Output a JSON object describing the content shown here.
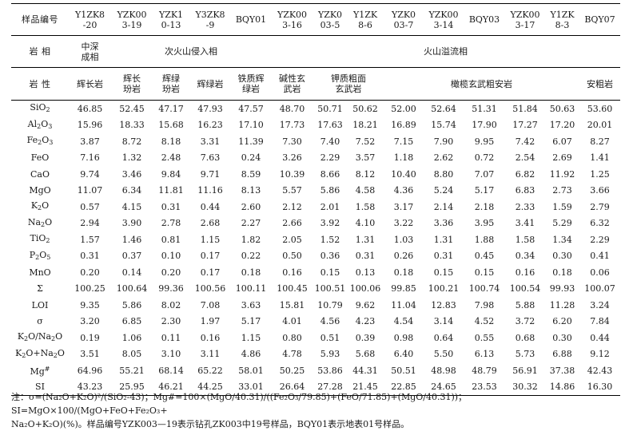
{
  "table": {
    "corner_label": "样品编号",
    "sample_ids": [
      [
        "Y1ZK8",
        "-20"
      ],
      [
        "YZK00",
        "3-19"
      ],
      [
        "YZK1",
        "0-13"
      ],
      [
        "Y3ZK8",
        "-9"
      ],
      [
        "BQY01",
        ""
      ],
      [
        "YZK00",
        "3-16"
      ],
      [
        "YZK0",
        "03-5"
      ],
      [
        "Y1ZK",
        "8-6"
      ],
      [
        "YZK0",
        "03-7"
      ],
      [
        "YZK00",
        "3-14"
      ],
      [
        "BQY03",
        ""
      ],
      [
        "YZK00",
        "3-17"
      ],
      [
        "Y1ZK",
        "8-3"
      ],
      [
        "BQY07",
        ""
      ]
    ],
    "facies_label": "岩 相",
    "facies_1": [
      "中深",
      "成相"
    ],
    "facies_2": "次火山侵入相",
    "facies_3": "火山溢流相",
    "rock_label": "岩 性",
    "rocks": {
      "r1": "辉长岩",
      "r2": [
        "辉长",
        "玢岩"
      ],
      "r3": [
        "辉绿",
        "玢岩"
      ],
      "r4": "辉绿岩",
      "r5": [
        "铁质辉",
        "绿岩"
      ],
      "r6": [
        "碱性玄",
        "武岩"
      ],
      "r7": [
        "钾质粗面",
        "玄武岩"
      ],
      "r8": "橄榄玄武粗安岩",
      "r9": "安粗岩"
    },
    "rows": [
      {
        "label": "SiO2",
        "values": [
          "46.85",
          "52.45",
          "47.17",
          "47.93",
          "47.57",
          "48.70",
          "50.71",
          "50.62",
          "52.00",
          "52.64",
          "51.31",
          "51.84",
          "50.63",
          "53.60"
        ]
      },
      {
        "label": "Al2O3",
        "values": [
          "15.96",
          "18.33",
          "15.68",
          "16.23",
          "17.10",
          "17.73",
          "17.63",
          "18.21",
          "16.89",
          "15.74",
          "17.90",
          "17.27",
          "17.20",
          "20.01"
        ]
      },
      {
        "label": "Fe2O3",
        "values": [
          "3.87",
          "8.72",
          "8.18",
          "3.31",
          "11.39",
          "7.30",
          "7.40",
          "7.52",
          "7.15",
          "7.90",
          "9.95",
          "7.42",
          "6.07",
          "8.27"
        ]
      },
      {
        "label": "FeO",
        "values": [
          "7.16",
          "1.32",
          "2.48",
          "7.63",
          "0.24",
          "3.26",
          "2.29",
          "3.57",
          "1.18",
          "2.62",
          "0.72",
          "2.54",
          "2.69",
          "1.41"
        ]
      },
      {
        "label": "CaO",
        "values": [
          "9.74",
          "3.46",
          "9.84",
          "9.71",
          "8.59",
          "10.39",
          "8.66",
          "8.12",
          "10.40",
          "8.80",
          "7.07",
          "6.82",
          "11.92",
          "1.25"
        ]
      },
      {
        "label": "MgO",
        "values": [
          "11.07",
          "6.34",
          "11.81",
          "11.16",
          "8.13",
          "5.57",
          "5.86",
          "4.58",
          "4.36",
          "5.24",
          "5.17",
          "6.83",
          "2.73",
          "3.66"
        ]
      },
      {
        "label": "K2O",
        "values": [
          "0.57",
          "4.15",
          "0.31",
          "0.44",
          "2.60",
          "2.12",
          "2.01",
          "1.58",
          "3.17",
          "2.14",
          "2.18",
          "2.33",
          "1.59",
          "2.79"
        ]
      },
      {
        "label": "Na2O",
        "values": [
          "2.94",
          "3.90",
          "2.78",
          "2.68",
          "2.27",
          "2.66",
          "3.92",
          "4.10",
          "3.22",
          "3.36",
          "3.95",
          "3.41",
          "5.29",
          "6.32"
        ]
      },
      {
        "label": "TiO2",
        "values": [
          "1.57",
          "1.46",
          "0.81",
          "1.15",
          "1.82",
          "2.05",
          "1.52",
          "1.31",
          "1.03",
          "1.31",
          "1.88",
          "1.58",
          "1.34",
          "2.29"
        ]
      },
      {
        "label": "P2O5",
        "values": [
          "0.31",
          "0.37",
          "0.10",
          "0.17",
          "0.22",
          "0.50",
          "0.36",
          "0.31",
          "0.26",
          "0.31",
          "0.45",
          "0.34",
          "0.30",
          "0.41"
        ]
      },
      {
        "label": "MnO",
        "values": [
          "0.20",
          "0.14",
          "0.20",
          "0.17",
          "0.18",
          "0.16",
          "0.15",
          "0.13",
          "0.18",
          "0.15",
          "0.15",
          "0.16",
          "0.18",
          "0.06"
        ]
      },
      {
        "label": "Σ",
        "values": [
          "100.25",
          "100.64",
          "99.36",
          "100.56",
          "100.11",
          "100.45",
          "100.51",
          "100.06",
          "99.85",
          "100.21",
          "100.74",
          "100.54",
          "99.93",
          "100.07"
        ]
      },
      {
        "label": "LOI",
        "values": [
          "9.35",
          "5.86",
          "8.02",
          "7.08",
          "3.63",
          "15.81",
          "10.79",
          "9.62",
          "11.04",
          "12.83",
          "7.98",
          "5.88",
          "11.28",
          "3.24"
        ]
      },
      {
        "label": "σ",
        "values": [
          "3.20",
          "6.85",
          "2.30",
          "1.97",
          "5.17",
          "4.01",
          "4.56",
          "4.23",
          "4.54",
          "3.14",
          "4.52",
          "3.72",
          "6.20",
          "7.84"
        ]
      },
      {
        "label": "K2O/Na2O",
        "values": [
          "0.19",
          "1.06",
          "0.11",
          "0.16",
          "1.15",
          "0.80",
          "0.51",
          "0.39",
          "0.98",
          "0.64",
          "0.55",
          "0.68",
          "0.30",
          "0.44"
        ]
      },
      {
        "label": "K2O+Na2O",
        "values": [
          "3.51",
          "8.05",
          "3.10",
          "3.11",
          "4.86",
          "4.78",
          "5.93",
          "5.68",
          "6.40",
          "5.50",
          "6.13",
          "5.73",
          "6.88",
          "9.12"
        ]
      },
      {
        "label": "Mg#",
        "values": [
          "64.96",
          "55.21",
          "68.14",
          "65.22",
          "58.01",
          "50.25",
          "53.86",
          "44.31",
          "50.51",
          "48.98",
          "48.79",
          "56.91",
          "37.38",
          "42.43"
        ]
      },
      {
        "label": "SI",
        "values": [
          "43.23",
          "25.95",
          "46.21",
          "44.25",
          "33.01",
          "26.64",
          "27.28",
          "21.45",
          "22.85",
          "24.65",
          "23.53",
          "30.32",
          "14.86",
          "16.30"
        ]
      }
    ]
  },
  "note": {
    "line1": "注：σ=(Na₂O+K₂O)²/(SiO₂-43)；Mg#=100×(MgO/40.31)/((Fe₂O₃/79.85)+(FeO/71.85)+(MgO/40.31))；SI=MgO×100/(MgO+FeO+Fe₂O₃+",
    "line2": "Na₂O+K₂O)(%)。样品编号YZK003—19表示钻孔ZK003中19号样品，BQY01表示地表01号样品。"
  }
}
